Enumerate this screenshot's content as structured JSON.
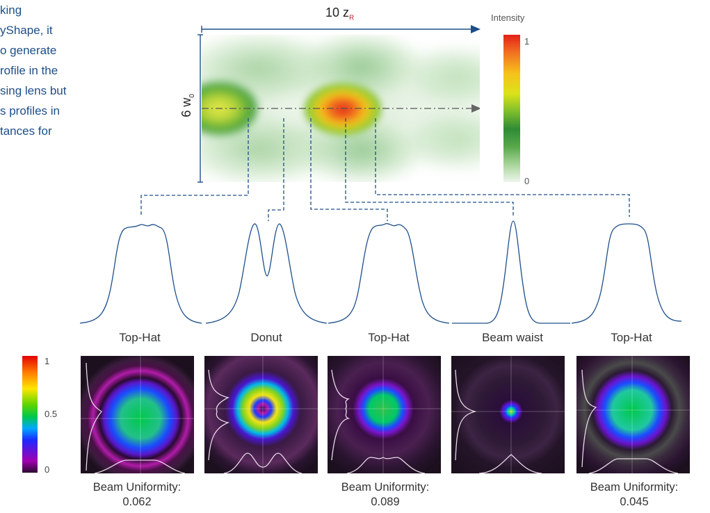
{
  "intro_lines": [
    "king",
    "yShape, it",
    "o generate",
    "rofile in the",
    "sing lens but",
    "s profiles in",
    "tances for"
  ],
  "heatmap": {
    "top_label_main": "10 z",
    "top_label_sub": "R",
    "side_label_main": "6 w",
    "side_label_sub": "0",
    "colorbar_title": "Intensity",
    "colorbar_max": "1",
    "colorbar_min": "0"
  },
  "profiles": [
    {
      "label": "Top-Hat",
      "shape": "tophat"
    },
    {
      "label": "Donut",
      "shape": "donut"
    },
    {
      "label": "Top-Hat",
      "shape": "tophat"
    },
    {
      "label": "Beam waist",
      "shape": "waist"
    },
    {
      "label": "Top-Hat",
      "shape": "tophat"
    }
  ],
  "beam_colorbar": {
    "max": "1",
    "mid": "0.5",
    "min": "0"
  },
  "uniformity": [
    {
      "title": "Beam Uniformity:",
      "value": "0.062"
    },
    {
      "title": "Beam Uniformity:",
      "value": "0.089"
    },
    {
      "title": "Beam Uniformity:",
      "value": "0.045"
    }
  ],
  "colors": {
    "navy": "#1d4e89",
    "gray_arrow": "#666666"
  },
  "icons": [
    "arrow-right-icon"
  ]
}
